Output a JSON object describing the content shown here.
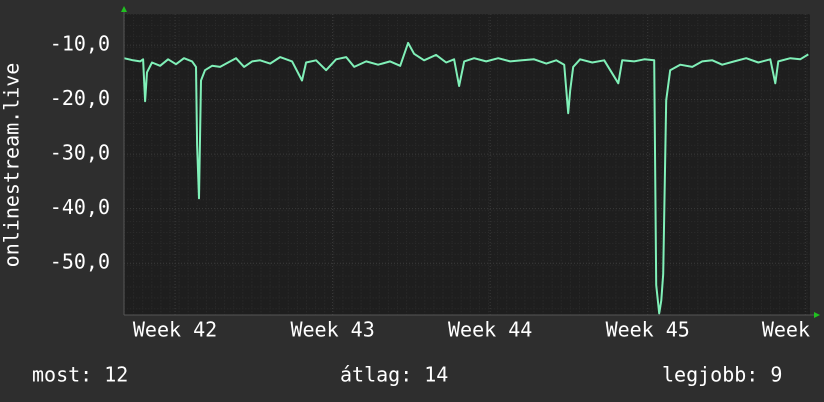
{
  "chart_data": {
    "type": "line",
    "y_label": "onlinestream.live",
    "xlim": [
      41.676,
      46.03
    ],
    "xticks": [
      {
        "value": 42,
        "label": "Week 42"
      },
      {
        "value": 43,
        "label": "Week 43"
      },
      {
        "value": 44,
        "label": "Week 44"
      },
      {
        "value": 45,
        "label": "Week 45"
      },
      {
        "value": 46,
        "label": "Week"
      }
    ],
    "ylim": [
      -59.5,
      -4.3
    ],
    "yticks": [
      {
        "value": -10,
        "label": "-10,0"
      },
      {
        "value": -20,
        "label": "-20,0"
      },
      {
        "value": -30,
        "label": "-30,0"
      },
      {
        "value": -40,
        "label": "-40,0"
      },
      {
        "value": -50,
        "label": "-50,0"
      }
    ],
    "grid": true,
    "series": [
      {
        "color": "#80f0b8",
        "x": [
          41.676,
          41.733,
          41.778,
          41.797,
          41.81,
          41.822,
          41.854,
          41.905,
          41.956,
          42.006,
          42.057,
          42.108,
          42.133,
          42.14,
          42.152,
          42.165,
          42.19,
          42.235,
          42.286,
          42.337,
          42.387,
          42.438,
          42.489,
          42.54,
          42.603,
          42.667,
          42.743,
          42.806,
          42.832,
          42.895,
          42.959,
          43.022,
          43.086,
          43.137,
          43.213,
          43.289,
          43.365,
          43.429,
          43.479,
          43.517,
          43.581,
          43.657,
          43.721,
          43.771,
          43.803,
          43.835,
          43.898,
          43.975,
          44.051,
          44.127,
          44.203,
          44.279,
          44.356,
          44.419,
          44.47,
          44.495,
          44.508,
          44.527,
          44.571,
          44.648,
          44.724,
          44.813,
          44.838,
          44.914,
          44.978,
          45.041,
          45.054,
          45.073,
          45.086,
          45.098,
          45.117,
          45.143,
          45.206,
          45.283,
          45.346,
          45.41,
          45.473,
          45.549,
          45.625,
          45.702,
          45.778,
          45.81,
          45.829,
          45.905,
          45.968,
          46.019
        ],
        "values": [
          -12.4,
          -12.8,
          -13.0,
          -12.6,
          -20.3,
          -15.0,
          -13.2,
          -13.8,
          -12.6,
          -13.5,
          -12.4,
          -13.0,
          -14.0,
          -28.3,
          -38.1,
          -16.5,
          -14.6,
          -13.8,
          -14.0,
          -13.2,
          -12.4,
          -14.0,
          -13.0,
          -12.8,
          -13.4,
          -12.2,
          -13.0,
          -16.5,
          -13.2,
          -12.8,
          -14.6,
          -12.6,
          -12.2,
          -14.0,
          -13.0,
          -13.6,
          -13.0,
          -13.8,
          -9.6,
          -11.6,
          -12.8,
          -11.8,
          -13.2,
          -12.6,
          -17.5,
          -13.0,
          -12.4,
          -13.0,
          -12.4,
          -13.0,
          -12.8,
          -12.6,
          -13.4,
          -12.8,
          -13.6,
          -22.5,
          -18.3,
          -14.0,
          -12.6,
          -13.2,
          -12.8,
          -17.0,
          -12.8,
          -13.0,
          -12.6,
          -12.8,
          -54.0,
          -59.2,
          -56.8,
          -52.0,
          -20.1,
          -14.6,
          -13.6,
          -14.0,
          -13.0,
          -12.8,
          -13.6,
          -13.0,
          -12.4,
          -13.2,
          -12.6,
          -17.0,
          -13.0,
          -12.4,
          -12.6,
          -11.7
        ]
      }
    ],
    "stats": [
      {
        "label": "most:",
        "value": 12
      },
      {
        "label": "átlag:",
        "value": 14
      },
      {
        "label": "legjobb:",
        "value": 9
      }
    ]
  }
}
